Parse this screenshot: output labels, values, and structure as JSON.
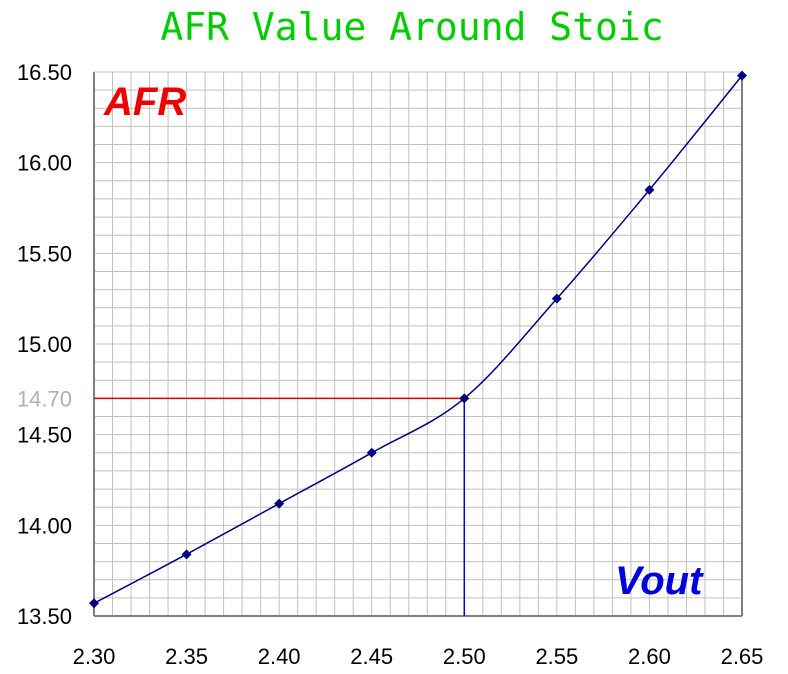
{
  "chart_data": {
    "type": "line",
    "title": "AFR Value Around Stoic",
    "xlabel": "Vout",
    "ylabel": "AFR",
    "xlim": [
      2.3,
      2.65
    ],
    "ylim": [
      13.5,
      16.5
    ],
    "x_ticks": [
      "2.30",
      "2.35",
      "2.40",
      "2.45",
      "2.50",
      "2.55",
      "2.60",
      "2.65"
    ],
    "y_ticks": [
      "13.50",
      "14.00",
      "14.50",
      "15.00",
      "15.50",
      "16.00",
      "16.50"
    ],
    "grid": true,
    "series": [
      {
        "x": [
          2.3,
          2.35,
          2.4,
          2.45,
          2.5,
          2.55,
          2.6,
          2.65
        ],
        "y": [
          13.57,
          13.84,
          14.12,
          14.4,
          14.7,
          15.25,
          15.85,
          16.48
        ],
        "color": "#000080"
      }
    ],
    "reference": {
      "x": 2.5,
      "y": 14.7,
      "y_label": "14.70",
      "h_color": "#dd0000",
      "v_color": "#0000dd"
    }
  }
}
